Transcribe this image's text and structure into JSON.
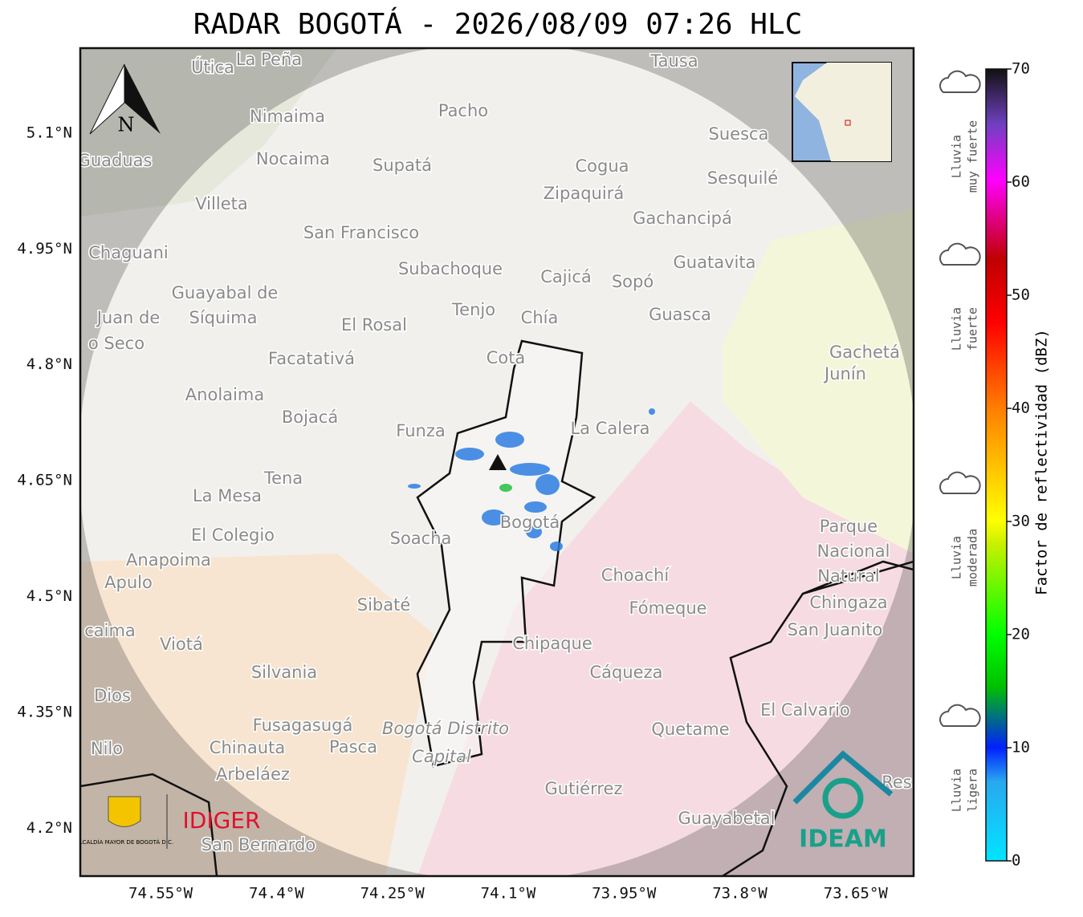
{
  "title": "RADAR BOGOTÁ - 2026/08/09 07:26 HLC",
  "map": {
    "lonlim": [
      -74.654,
      -73.575
    ],
    "latlim": [
      4.138,
      5.21
    ],
    "lon_ticks": [
      {
        "value": -74.55,
        "label": "74.55°W"
      },
      {
        "value": -74.4,
        "label": "74.4°W"
      },
      {
        "value": -74.25,
        "label": "74.25°W"
      },
      {
        "value": -74.1,
        "label": "74.1°W"
      },
      {
        "value": -73.95,
        "label": "73.95°W"
      },
      {
        "value": -73.8,
        "label": "73.8°W"
      },
      {
        "value": -73.65,
        "label": "73.65°W"
      }
    ],
    "lat_ticks": [
      {
        "value": 5.1,
        "label": "5.1°N"
      },
      {
        "value": 4.95,
        "label": "4.95°N"
      },
      {
        "value": 4.8,
        "label": "4.8°N"
      },
      {
        "value": 4.65,
        "label": "4.65°N"
      },
      {
        "value": 4.5,
        "label": "4.5°N"
      },
      {
        "value": 4.35,
        "label": "4.35°N"
      },
      {
        "value": 4.2,
        "label": "4.2°N"
      }
    ],
    "north": "N",
    "places": [
      "Útica",
      "La Peña",
      "Tausa",
      "Pacho",
      "Nimaima",
      "Suesca",
      "Guaduas",
      "Nocaima",
      "Supatá",
      "Cogua",
      "Sesquilé",
      "Zipaquirá",
      "Villeta",
      "Gachancipá",
      "San Francisco",
      "Chaguani",
      "Guatavita",
      "Subachoque",
      "Cajicá",
      "Sopó",
      "Guayabal de",
      "Síquima",
      "Tenjo",
      "Chía",
      "Guasca",
      "Juan de",
      "El Rosal",
      "o Seco",
      "Gachetá",
      "Junín",
      "Facatativá",
      "Cota",
      "Anolaima",
      "La Calera",
      "Bojacá",
      "Funza",
      "Tena",
      "La Mesa",
      "Bogotá",
      "Parque",
      "El Colegio",
      "Soacha",
      "Nacional",
      "Anapoima",
      "Choachí",
      "Natural",
      "Apulo",
      "Chingaza",
      "Sibaté",
      "Fómeque",
      "San Juanito",
      "caima",
      "Viotá",
      "Chipaque",
      "Silvania",
      "Cáqueza",
      "Dios",
      "El Calvario",
      "Fusagasugá",
      "Bogotá Distrito",
      "Quetame",
      "Nilo",
      "Chinauta",
      "Pasca",
      "Capital",
      "Arbeláez",
      "Gutiérrez",
      "Res",
      "Guayabetal",
      "San Bernardo"
    ]
  },
  "logos": {
    "alcaldia": "ALCALDÍA MAYOR DE BOGOTÁ D.C.",
    "idiger": "IDIGER",
    "ideam": "IDEAM"
  },
  "colorbar": {
    "label": "Factor de reflectividad (dBZ)",
    "lim": [
      0,
      70
    ],
    "ticks": [
      0,
      10,
      20,
      30,
      40,
      50,
      60,
      70
    ]
  },
  "intensity_labels": [
    [
      "Lluvia",
      "muy fuerte"
    ],
    [
      "Lluvia",
      "fuerte"
    ],
    [
      "Lluvia",
      "moderada"
    ],
    [
      "Lluvia",
      "ligera"
    ]
  ]
}
